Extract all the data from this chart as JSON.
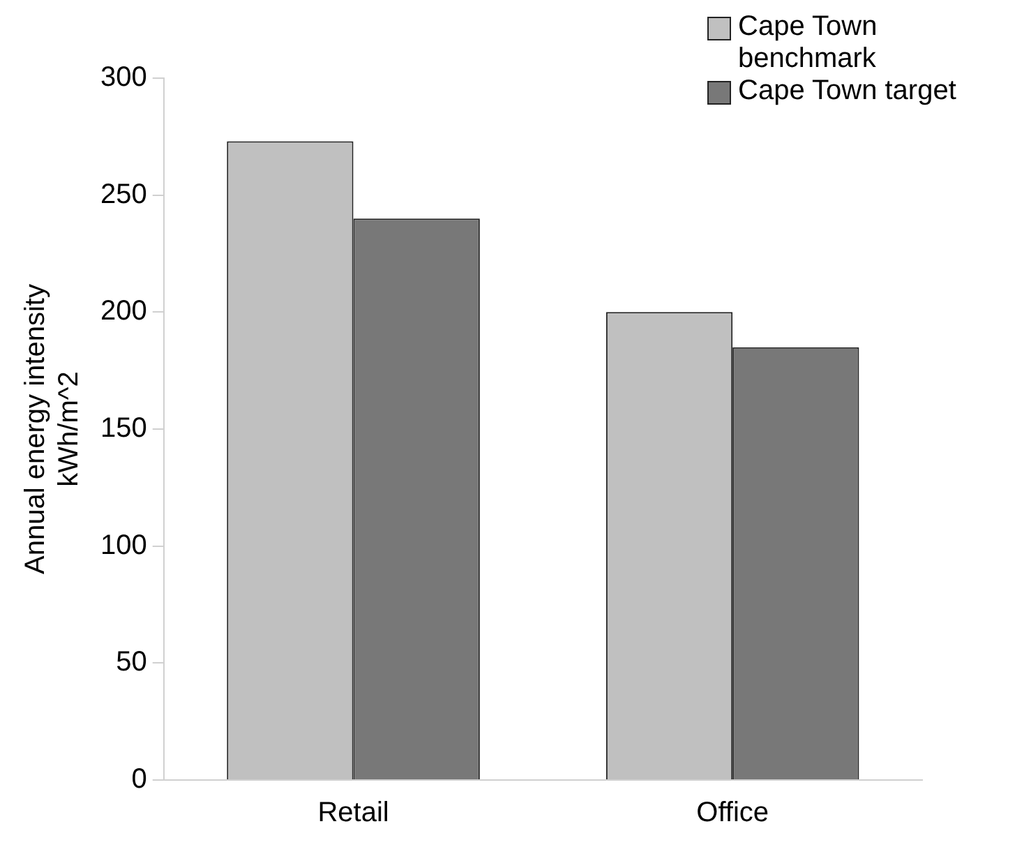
{
  "chart_data": {
    "type": "bar",
    "ylabel": "Annual energy intensity kWh/m^2",
    "categories": [
      "Retail",
      "Office"
    ],
    "series": [
      {
        "name": "Cape Town benchmark",
        "color": "#c0c0c0",
        "values": [
          273,
          200
        ]
      },
      {
        "name": "Cape Town target",
        "color": "#787878",
        "values": [
          240,
          185
        ]
      }
    ],
    "ylim": [
      0,
      300
    ],
    "yticks": [
      0,
      50,
      100,
      150,
      200,
      250,
      300
    ],
    "grid": false,
    "legend": "top right"
  }
}
